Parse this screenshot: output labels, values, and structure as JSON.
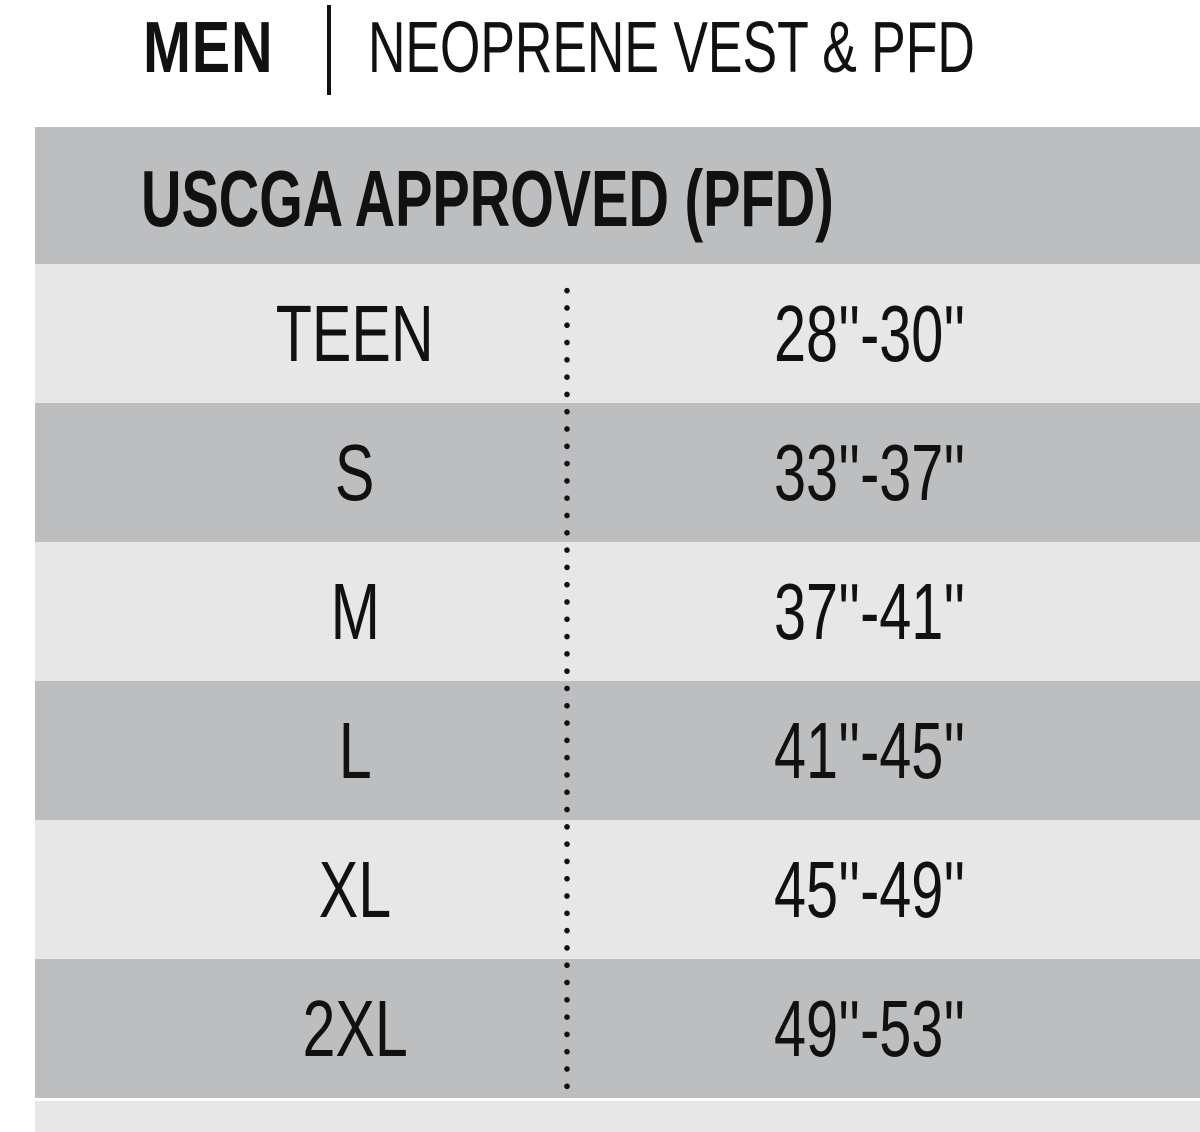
{
  "title": {
    "category": "MEN",
    "product": "NEOPRENE VEST & PFD"
  },
  "table": {
    "header": "USCGA APPROVED (PFD)",
    "rows": [
      {
        "size": "TEEN",
        "measurement": "28''-30''"
      },
      {
        "size": "S",
        "measurement": "33''-37''"
      },
      {
        "size": "M",
        "measurement": "37''-41''"
      },
      {
        "size": "L",
        "measurement": "41''-45''"
      },
      {
        "size": "XL",
        "measurement": "45''-49''"
      },
      {
        "size": "2XL",
        "measurement": "49''-53''"
      }
    ]
  },
  "colors": {
    "band_dark": "#bdbec0",
    "band_light": "#e7e7e8",
    "text": "#111111"
  }
}
